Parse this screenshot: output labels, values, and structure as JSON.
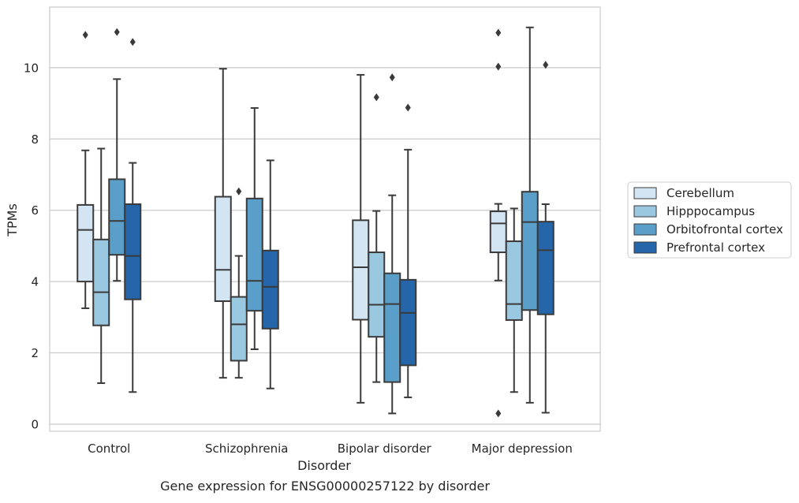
{
  "chart_data": {
    "type": "box",
    "categories": [
      "Control",
      "Schizophrenia",
      "Bipolar disorder",
      "Major depression"
    ],
    "xlabel": "Disorder",
    "ylabel": "TPMs",
    "caption": "Gene expression for ENSG00000257122 by disorder",
    "ylim": [
      -0.2,
      11.7
    ],
    "yticks": [
      0,
      2,
      4,
      6,
      8,
      10
    ],
    "grid": true,
    "legend_position": "right",
    "series": [
      {
        "name": "Cerebellum",
        "color": "#d3e4f3",
        "boxes": [
          {
            "whislo": 3.25,
            "q1": 4.0,
            "med": 5.45,
            "q3": 6.15,
            "whishi": 7.68,
            "fliers": [
              10.92
            ]
          },
          {
            "whislo": 1.3,
            "q1": 3.45,
            "med": 4.33,
            "q3": 6.38,
            "whishi": 9.97,
            "fliers": []
          },
          {
            "whislo": 0.6,
            "q1": 2.93,
            "med": 4.4,
            "q3": 5.72,
            "whishi": 9.8,
            "fliers": []
          },
          {
            "whislo": 4.03,
            "q1": 4.82,
            "med": 5.63,
            "q3": 5.97,
            "whishi": 6.18,
            "fliers": [
              10.98,
              10.03,
              0.3
            ]
          }
        ]
      },
      {
        "name": "Hipppocampus",
        "color": "#9ac8e0",
        "boxes": [
          {
            "whislo": 1.15,
            "q1": 2.77,
            "med": 3.7,
            "q3": 5.18,
            "whishi": 7.73,
            "fliers": []
          },
          {
            "whislo": 1.3,
            "q1": 1.78,
            "med": 2.8,
            "q3": 3.57,
            "whishi": 4.72,
            "fliers": [
              6.53
            ]
          },
          {
            "whislo": 1.18,
            "q1": 2.45,
            "med": 3.35,
            "q3": 4.82,
            "whishi": 5.98,
            "fliers": [
              9.17
            ]
          },
          {
            "whislo": 0.9,
            "q1": 2.92,
            "med": 3.37,
            "q3": 5.13,
            "whishi": 6.05,
            "fliers": []
          }
        ]
      },
      {
        "name": "Orbitofrontal cortex",
        "color": "#5a9fc9",
        "boxes": [
          {
            "whislo": 4.02,
            "q1": 4.75,
            "med": 5.7,
            "q3": 6.87,
            "whishi": 9.68,
            "fliers": [
              11.0
            ]
          },
          {
            "whislo": 2.1,
            "q1": 3.18,
            "med": 4.02,
            "q3": 6.33,
            "whishi": 8.87,
            "fliers": []
          },
          {
            "whislo": 0.3,
            "q1": 1.18,
            "med": 3.37,
            "q3": 4.23,
            "whishi": 6.42,
            "fliers": [
              9.73
            ]
          },
          {
            "whislo": 0.6,
            "q1": 3.2,
            "med": 5.67,
            "q3": 6.52,
            "whishi": 11.13,
            "fliers": []
          }
        ]
      },
      {
        "name": "Prefrontal cortex",
        "color": "#2466a9",
        "boxes": [
          {
            "whislo": 0.9,
            "q1": 3.5,
            "med": 4.72,
            "q3": 6.17,
            "whishi": 7.33,
            "fliers": [
              10.72
            ]
          },
          {
            "whislo": 1.0,
            "q1": 2.68,
            "med": 3.85,
            "q3": 4.87,
            "whishi": 7.4,
            "fliers": []
          },
          {
            "whislo": 0.75,
            "q1": 1.65,
            "med": 3.12,
            "q3": 4.05,
            "whishi": 7.7,
            "fliers": [
              8.88
            ]
          },
          {
            "whislo": 0.32,
            "q1": 3.08,
            "med": 4.88,
            "q3": 5.68,
            "whishi": 6.17,
            "fliers": [
              10.08
            ]
          }
        ]
      }
    ]
  }
}
